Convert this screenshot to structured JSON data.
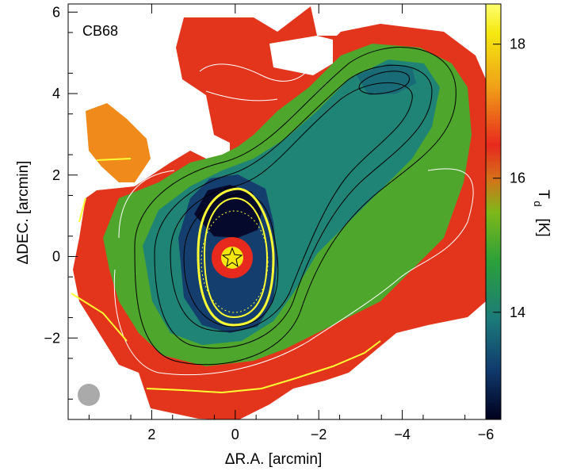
{
  "chart_data": {
    "type": "heatmap",
    "title": "CB68",
    "xlabel": "ΔR.A. [arcmin]",
    "ylabel": "ΔDEC. [arcmin]",
    "xlim": [
      4,
      -6
    ],
    "ylim": [
      -4,
      6.2
    ],
    "x_ticks": [
      "2",
      "0",
      "−2",
      "−4",
      "−6"
    ],
    "y_ticks": [
      "−2",
      "0",
      "2",
      "4",
      "6"
    ],
    "colorbar": {
      "label_main": "T",
      "label_sub": "d",
      "label_unit": "[K]",
      "range": [
        12.4,
        18.6
      ],
      "ticks": [
        "14",
        "16",
        "18"
      ],
      "colors": [
        "#00001c",
        "#103a6e",
        "#1b7a7a",
        "#2ba03a",
        "#7fb819",
        "#d6701a",
        "#e8291d",
        "#f0a018",
        "#f5e810",
        "#ffff70"
      ]
    },
    "core_position": {
      "ra": -0.2,
      "dec": 0.05
    },
    "beam": {
      "ra": 3.4,
      "dec": -3.3
    }
  }
}
